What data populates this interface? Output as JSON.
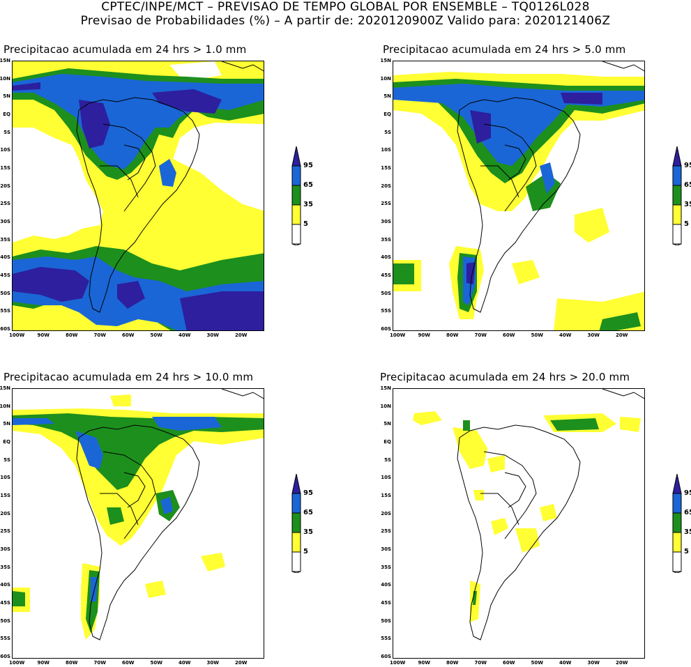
{
  "header": {
    "line1": "CPTEC/INPE/MCT – PREVISAO DE TEMPO GLOBAL POR ENSEMBLE – TQ0126L028",
    "line2": "Previsao de Probabilidades (%) –  A partir de: 2020120900Z  Valido para: 2020121406Z"
  },
  "axes": {
    "lat_labels": [
      "15N",
      "10N",
      "5N",
      "EQ",
      "5S",
      "10S",
      "15S",
      "20S",
      "25S",
      "30S",
      "35S",
      "40S",
      "45S",
      "50S",
      "55S",
      "60S"
    ],
    "lon_labels": [
      "100W",
      "90W",
      "80W",
      "70W",
      "60W",
      "50W",
      "40W",
      "30W",
      "20W"
    ]
  },
  "legend": {
    "levels": [
      "95",
      "65",
      "35",
      "5"
    ],
    "colors": {
      "95": "#2d1f9e",
      "65": "#1a66d6",
      "35": "#1d8f1d",
      "5": "#ffff33"
    }
  },
  "panels": [
    {
      "id": "p1",
      "title": "Precipitacao acumulada em 24 hrs > 1.0 mm"
    },
    {
      "id": "p2",
      "title": "Precipitacao acumulada em 24 hrs > 5.0 mm"
    },
    {
      "id": "p3",
      "title": "Precipitacao acumulada em 24 hrs > 10.0 mm"
    },
    {
      "id": "p4",
      "title": "Precipitacao acumulada em 24 hrs > 20.0 mm"
    }
  ]
}
